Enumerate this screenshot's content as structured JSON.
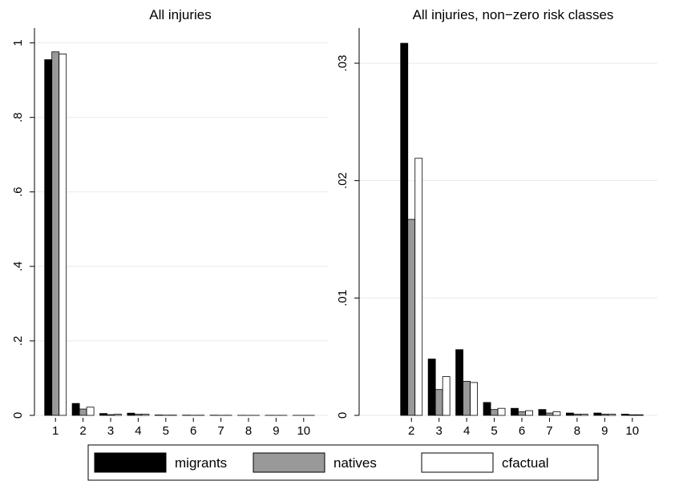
{
  "chart_data": [
    {
      "type": "bar",
      "title": "All injuries",
      "categories": [
        "1",
        "2",
        "3",
        "4",
        "5",
        "6",
        "7",
        "8",
        "9",
        "10"
      ],
      "series": [
        {
          "name": "migrants",
          "color": "#000000",
          "values": [
            0.955,
            0.032,
            0.005,
            0.006,
            0.001,
            0.0006,
            0.0005,
            0.0002,
            0.0002,
            0.0001
          ]
        },
        {
          "name": "natives",
          "color": "#999999",
          "values": [
            0.976,
            0.017,
            0.002,
            0.003,
            0.0005,
            0.0003,
            0.0002,
            0.0001,
            0.0001,
            5e-05
          ]
        },
        {
          "name": "cfactual",
          "color": "#ffffff",
          "values": [
            0.97,
            0.022,
            0.003,
            0.003,
            0.0006,
            0.0004,
            0.0003,
            0.0001,
            0.0001,
            5e-05
          ]
        }
      ],
      "ylim": [
        0,
        1.04
      ],
      "yticks": [
        0,
        {
          "value": 0.2,
          "label": ".2"
        },
        {
          "value": 0.4,
          "label": ".4"
        },
        {
          "value": 0.6,
          "label": ".6"
        },
        {
          "value": 0.8,
          "label": ".8"
        },
        1
      ],
      "grid": true
    },
    {
      "type": "bar",
      "title": "All injuries, non−zero risk classes",
      "categories": [
        "2",
        "3",
        "4",
        "5",
        "6",
        "7",
        "8",
        "9",
        "10"
      ],
      "series": [
        {
          "color": "#000000",
          "values": [
            0.0317,
            0.0048,
            0.0056,
            0.0011,
            0.0006,
            0.0005,
            0.0002,
            0.0002,
            0.0001
          ]
        },
        {
          "color": "#999999",
          "values": [
            0.0167,
            0.0022,
            0.0029,
            0.0005,
            0.0003,
            0.0002,
            0.0001,
            0.0001,
            5e-05
          ]
        },
        {
          "color": "#ffffff",
          "values": [
            0.0219,
            0.0033,
            0.0028,
            0.0006,
            0.0004,
            0.0003,
            0.0001,
            0.0001,
            5e-05
          ]
        }
      ],
      "ylim": [
        0,
        0.033
      ],
      "yticks": [
        0,
        {
          "value": 0.01,
          "label": ".01"
        },
        {
          "value": 0.02,
          "label": ".02"
        },
        {
          "value": 0.03,
          "label": ".03"
        }
      ],
      "grid": true
    }
  ]
}
